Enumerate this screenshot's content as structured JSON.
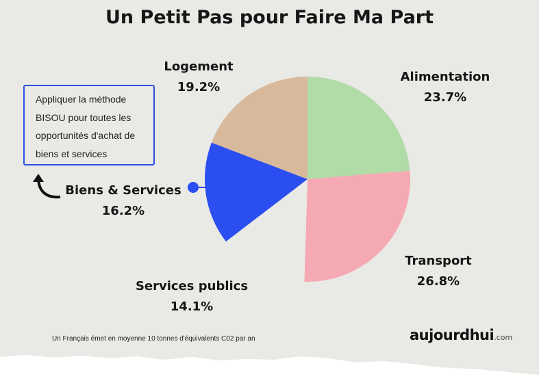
{
  "chart_data": {
    "type": "pie",
    "title": "Un Petit Pas pour Faire Ma Part",
    "start": "12 o'clock, clockwise",
    "slices": [
      {
        "label": "Alimentation",
        "value": 23.7,
        "display": "23.7%",
        "color": "#b1dba7"
      },
      {
        "label": "Transport",
        "value": 26.8,
        "display": "26.8%",
        "color": "#f5a9b3"
      },
      {
        "label": "Services publics",
        "value": 14.1,
        "display": "14.1%",
        "color": "#e9eae6"
      },
      {
        "label": "Biens & Services",
        "value": 16.2,
        "display": "16.2%",
        "color": "#2b4ef0"
      },
      {
        "label": "Logement",
        "value": 19.2,
        "display": "19.2%",
        "color": "#d8b99b"
      }
    ]
  },
  "note": {
    "lines": [
      "Appliquer la méthode",
      "BISOU pour toutes les",
      "opportunités d'achat de",
      "biens et services"
    ]
  },
  "footer": "Un Français émet en moyenne 10 tonnes d'équivalents C02 par an",
  "logo": {
    "main": "aujourdhui",
    "suffix": ".com"
  }
}
